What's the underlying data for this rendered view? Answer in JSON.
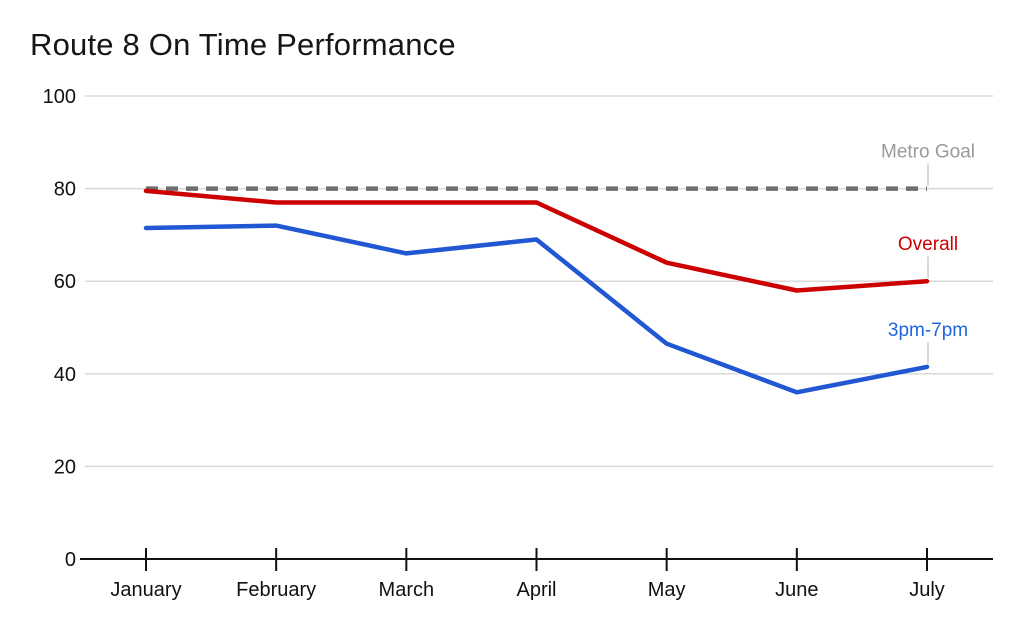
{
  "chart_data": {
    "type": "line",
    "title": "Route 8 On Time Performance",
    "xlabel": "",
    "ylabel": "",
    "x_categories": [
      "January",
      "February",
      "March",
      "April",
      "May",
      "June",
      "July"
    ],
    "ylim": [
      0,
      100
    ],
    "y_ticks": [
      0,
      20,
      40,
      60,
      80,
      100
    ],
    "grid": true,
    "legend_position": "inline-end-of-line-labels",
    "colors": {
      "gridline": "#d9d9d9",
      "axis": "#111111",
      "tick_label": "#111111",
      "leader_line": "#cfcfcf"
    },
    "series": [
      {
        "name": "Metro Goal",
        "color": "#6e6e6e",
        "label_color": "#9a9a9a",
        "style": "dashed",
        "values": [
          80,
          80,
          80,
          80,
          80,
          80,
          80
        ]
      },
      {
        "name": "Overall",
        "color": "#cc0000",
        "label_color": "#cc0000",
        "style": "solid",
        "values": [
          79.5,
          77,
          77,
          77,
          64,
          58,
          60
        ]
      },
      {
        "name": "3pm-7pm",
        "color": "#2157d2",
        "label_color": "#1d66e0",
        "style": "solid",
        "values": [
          71.5,
          72,
          66,
          69,
          46.5,
          36,
          41.5
        ]
      }
    ]
  }
}
